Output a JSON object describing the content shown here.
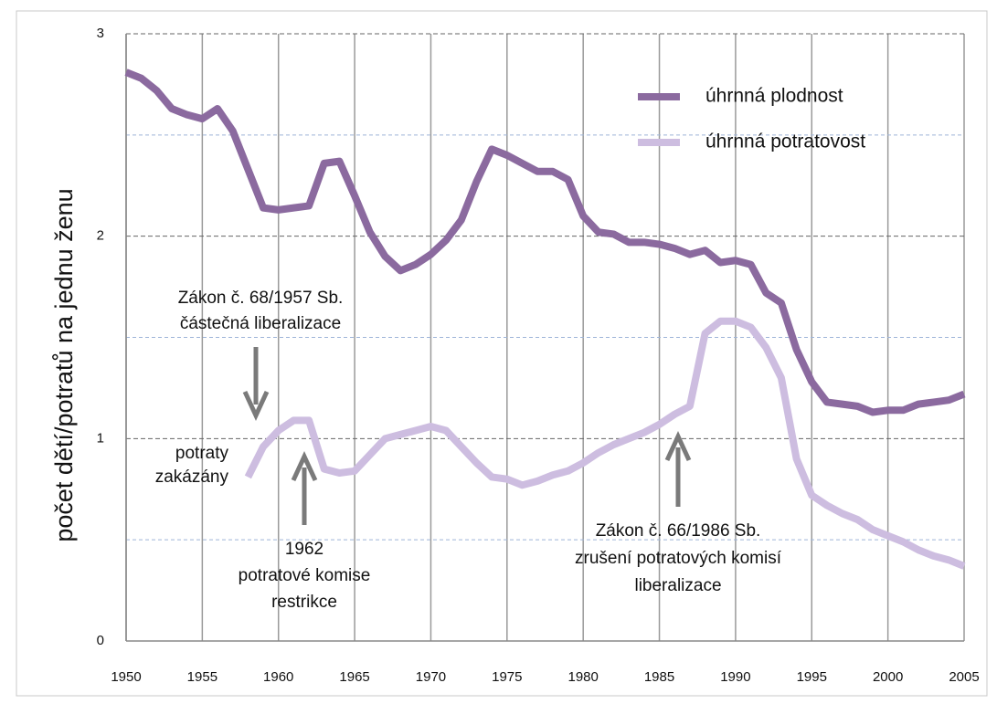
{
  "chart_data": {
    "type": "line",
    "ylabel": "počet dětí/potratů na jednu ženu",
    "x": [
      1950,
      1951,
      1952,
      1953,
      1954,
      1955,
      1956,
      1957,
      1958,
      1959,
      1960,
      1961,
      1962,
      1963,
      1964,
      1965,
      1966,
      1967,
      1968,
      1969,
      1970,
      1971,
      1972,
      1973,
      1974,
      1975,
      1976,
      1977,
      1978,
      1979,
      1980,
      1981,
      1982,
      1983,
      1984,
      1985,
      1986,
      1987,
      1988,
      1989,
      1990,
      1991,
      1992,
      1993,
      1994,
      1995,
      1996,
      1997,
      1998,
      1999,
      2000,
      2001,
      2002,
      2003,
      2004,
      2005
    ],
    "series": [
      {
        "name": "úhrnná plodnost",
        "color": "#8b6a9f",
        "values": [
          2.81,
          2.78,
          2.72,
          2.63,
          2.6,
          2.58,
          2.63,
          2.52,
          2.33,
          2.14,
          2.13,
          2.14,
          2.15,
          2.36,
          2.37,
          2.2,
          2.02,
          1.9,
          1.83,
          1.86,
          1.91,
          1.98,
          2.08,
          2.27,
          2.43,
          2.4,
          2.36,
          2.32,
          2.32,
          2.28,
          2.1,
          2.02,
          2.01,
          1.97,
          1.97,
          1.96,
          1.94,
          1.91,
          1.93,
          1.87,
          1.88,
          1.86,
          1.72,
          1.67,
          1.44,
          1.28,
          1.18,
          1.17,
          1.16,
          1.13,
          1.14,
          1.14,
          1.17,
          1.18,
          1.19,
          1.22
        ]
      },
      {
        "name": "úhrnná potratovost",
        "color": "#cdbde0",
        "values": [
          null,
          null,
          null,
          null,
          null,
          null,
          null,
          null,
          0.81,
          0.96,
          1.04,
          1.09,
          1.09,
          0.85,
          0.83,
          0.84,
          0.92,
          1.0,
          1.02,
          1.04,
          1.06,
          1.04,
          0.96,
          0.88,
          0.81,
          0.8,
          0.77,
          0.79,
          0.82,
          0.84,
          0.88,
          0.93,
          0.97,
          1.0,
          1.03,
          1.07,
          1.12,
          1.16,
          1.52,
          1.58,
          1.58,
          1.55,
          1.45,
          1.3,
          0.9,
          0.72,
          0.67,
          0.63,
          0.6,
          0.55,
          0.52,
          0.49,
          0.45,
          0.42,
          0.4,
          0.37
        ]
      }
    ],
    "xlim": [
      1950,
      2005
    ],
    "xticks": [
      1950,
      1955,
      1960,
      1965,
      1970,
      1975,
      1980,
      1985,
      1990,
      1995,
      2000,
      2005
    ],
    "ylim": [
      0,
      3
    ],
    "yticks": [
      0,
      1,
      2,
      3
    ],
    "minor_yticks": [
      0.5,
      1.5,
      2.5
    ],
    "grid": true,
    "legend": "upper right",
    "annotations": [
      {
        "lines": [
          "Zákon č. 68/1957 Sb.",
          "částečná liberalizace"
        ]
      },
      {
        "lines": [
          "potraty",
          "zakázány"
        ]
      },
      {
        "lines": [
          "1962",
          "potratové komise",
          "restrikce"
        ]
      },
      {
        "lines": [
          "Zákon č. 66/1986 Sb.",
          "zrušení potratových komisí",
          "liberalizace"
        ]
      }
    ]
  }
}
